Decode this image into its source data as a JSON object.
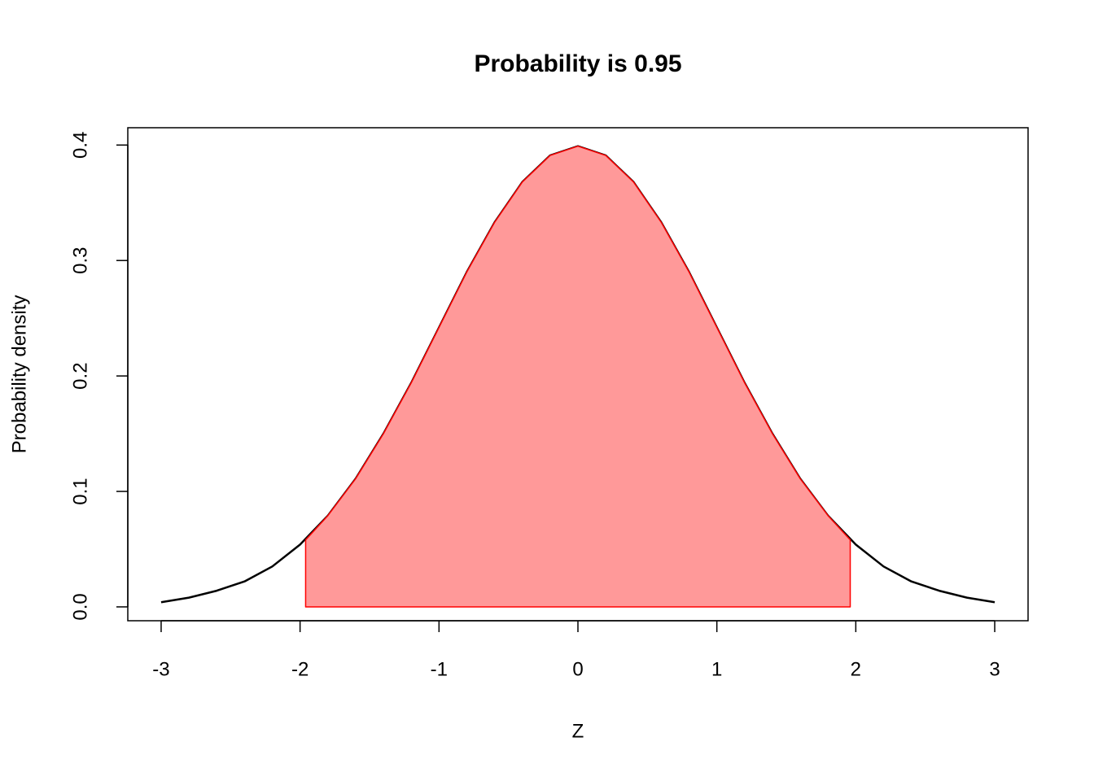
{
  "chart_data": {
    "type": "line",
    "title": "Probability is 0.95",
    "x_label": "Z",
    "y_label": "Probability density",
    "xlim": [
      -3.24,
      3.24
    ],
    "ylim": [
      -0.012,
      0.415
    ],
    "xticks": [
      -3,
      -2,
      -1,
      0,
      1,
      2,
      3
    ],
    "yticks": [
      {
        "value": 0,
        "label": "0.0"
      },
      0.1,
      0.2,
      0.3,
      0.4
    ],
    "grid": false,
    "series": [
      {
        "type": "line",
        "color": "#000000",
        "x": [
          -3,
          -2.8,
          -2.6,
          -2.4,
          -2.2,
          -2,
          -1.8,
          -1.6,
          -1.4,
          -1.2,
          -1,
          -0.8,
          -0.6,
          -0.4,
          -0.2,
          0,
          0.2,
          0.4,
          0.6,
          0.8,
          1,
          1.2,
          1.4,
          1.6,
          1.8,
          2,
          2.2,
          2.4,
          2.6,
          2.8,
          3
        ],
        "values": [
          0.004,
          0.008,
          0.014,
          0.022,
          0.035,
          0.054,
          0.079,
          0.111,
          0.15,
          0.194,
          0.242,
          0.29,
          0.333,
          0.368,
          0.391,
          0.399,
          0.391,
          0.368,
          0.333,
          0.29,
          0.242,
          0.194,
          0.15,
          0.111,
          0.079,
          0.054,
          0.035,
          0.022,
          0.014,
          0.008,
          0.004
        ]
      },
      {
        "type": "area",
        "color": "#ff0000",
        "fill": "#ff9999",
        "x": [
          -1.96,
          -1.8,
          -1.6,
          -1.4,
          -1.2,
          -1,
          -0.8,
          -0.6,
          -0.4,
          -0.2,
          0,
          0.2,
          0.4,
          0.6,
          0.8,
          1,
          1.2,
          1.4,
          1.6,
          1.8,
          1.96
        ],
        "values": [
          0.058,
          0.079,
          0.111,
          0.15,
          0.194,
          0.242,
          0.29,
          0.333,
          0.368,
          0.391,
          0.399,
          0.391,
          0.368,
          0.333,
          0.29,
          0.242,
          0.194,
          0.15,
          0.111,
          0.079,
          0.058
        ]
      }
    ]
  }
}
